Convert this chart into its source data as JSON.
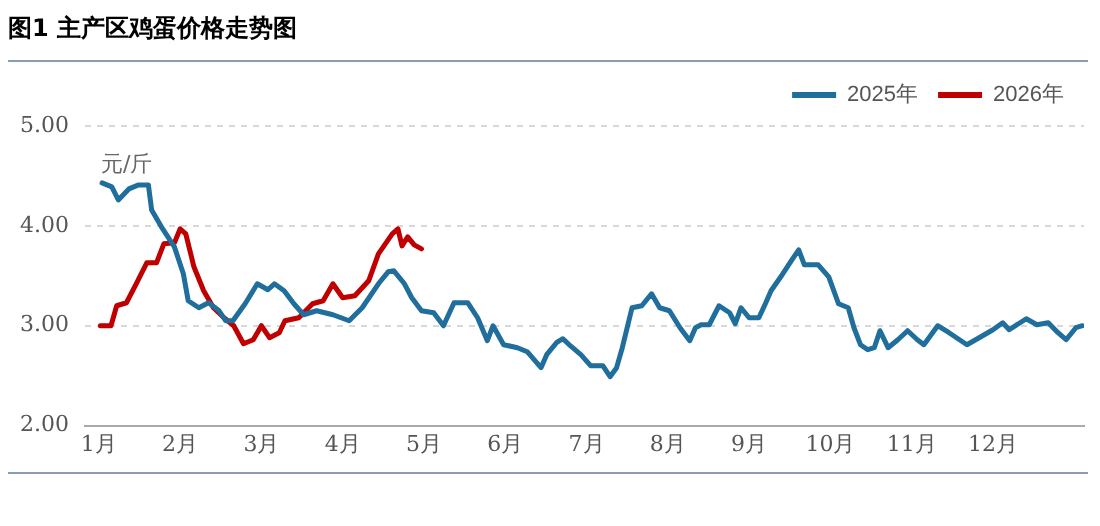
{
  "chart_data": {
    "type": "line",
    "title": "图1 主产区鸡蛋价格走势图",
    "ylabel": "元/斤",
    "xlim": [
      0.83,
      13.12
    ],
    "xticks": [
      {
        "value": 1,
        "label": "1月"
      },
      {
        "value": 2,
        "label": "2月"
      },
      {
        "value": 3,
        "label": "3月"
      },
      {
        "value": 4,
        "label": "4月"
      },
      {
        "value": 5,
        "label": "5月"
      },
      {
        "value": 6,
        "label": "6月"
      },
      {
        "value": 7,
        "label": "7月"
      },
      {
        "value": 8,
        "label": "8月"
      },
      {
        "value": 9,
        "label": "9月"
      },
      {
        "value": 10,
        "label": "10月"
      },
      {
        "value": 11,
        "label": "11月"
      },
      {
        "value": 12,
        "label": "12月"
      }
    ],
    "ylim": [
      2,
      5
    ],
    "yticks": [
      {
        "value": 2,
        "label": "2.00"
      },
      {
        "value": 3,
        "label": "3.00"
      },
      {
        "value": 4,
        "label": "4.00"
      },
      {
        "value": 5,
        "label": "5.00"
      }
    ],
    "grid": "y",
    "legend": "top right",
    "marker": "none",
    "line_style": "solid",
    "series": [
      {
        "name": "2025年",
        "color": "#1f6e9c",
        "x": [
          1.04,
          1.16,
          1.24,
          1.37,
          1.49,
          1.61,
          1.65,
          1.77,
          1.93,
          2.04,
          2.1,
          2.23,
          2.35,
          2.48,
          2.56,
          2.65,
          2.8,
          2.95,
          3.08,
          3.16,
          3.28,
          3.4,
          3.52,
          3.68,
          3.88,
          4.08,
          4.24,
          4.44,
          4.56,
          4.63,
          4.76,
          4.85,
          4.97,
          5.12,
          5.24,
          5.37,
          5.54,
          5.66,
          5.78,
          5.85,
          5.98,
          6.15,
          6.27,
          6.44,
          6.51,
          6.63,
          6.71,
          6.8,
          6.93,
          7.05,
          7.2,
          7.29,
          7.37,
          7.44,
          7.56,
          7.68,
          7.8,
          7.9,
          8.02,
          8.15,
          8.27,
          8.34,
          8.41,
          8.51,
          8.63,
          8.76,
          8.83,
          8.9,
          9.0,
          9.12,
          9.2,
          9.27,
          9.39,
          9.51,
          9.61,
          9.68,
          9.85,
          9.98,
          10.1,
          10.22,
          10.29,
          10.37,
          10.46,
          10.54,
          10.61,
          10.71,
          10.83,
          10.95,
          11.07,
          11.15,
          11.32,
          11.46,
          11.68,
          11.83,
          12.0,
          12.12,
          12.2,
          12.41,
          12.54,
          12.68,
          12.8,
          12.9,
          13.02,
          13.1
        ],
        "values": [
          4.43,
          4.39,
          4.26,
          4.37,
          4.41,
          4.41,
          4.16,
          3.99,
          3.79,
          3.52,
          3.25,
          3.18,
          3.23,
          3.15,
          3.05,
          3.05,
          3.22,
          3.42,
          3.36,
          3.42,
          3.35,
          3.22,
          3.11,
          3.15,
          3.11,
          3.05,
          3.18,
          3.42,
          3.54,
          3.55,
          3.42,
          3.28,
          3.15,
          3.13,
          3.0,
          3.23,
          3.23,
          3.08,
          2.85,
          3.0,
          2.81,
          2.78,
          2.74,
          2.58,
          2.71,
          2.83,
          2.87,
          2.8,
          2.71,
          2.6,
          2.6,
          2.49,
          2.58,
          2.78,
          3.18,
          3.2,
          3.32,
          3.18,
          3.15,
          2.98,
          2.85,
          2.98,
          3.01,
          3.01,
          3.2,
          3.13,
          3.02,
          3.18,
          3.08,
          3.08,
          3.22,
          3.35,
          3.49,
          3.64,
          3.76,
          3.61,
          3.61,
          3.49,
          3.22,
          3.18,
          2.98,
          2.81,
          2.76,
          2.78,
          2.95,
          2.78,
          2.86,
          2.95,
          2.86,
          2.81,
          3.0,
          2.93,
          2.81,
          2.88,
          2.96,
          3.03,
          2.96,
          3.07,
          3.01,
          3.03,
          2.93,
          2.86,
          2.98,
          3.0
        ]
      },
      {
        "name": "2026年",
        "color": "#c00000",
        "x": [
          1.02,
          1.15,
          1.22,
          1.34,
          1.46,
          1.59,
          1.71,
          1.8,
          1.93,
          2.0,
          2.07,
          2.17,
          2.29,
          2.41,
          2.54,
          2.66,
          2.78,
          2.9,
          3.0,
          3.1,
          3.22,
          3.29,
          3.46,
          3.63,
          3.76,
          3.88,
          4.0,
          4.15,
          4.32,
          4.44,
          4.61,
          4.68,
          4.73,
          4.8,
          4.88,
          4.97
        ],
        "values": [
          3.0,
          3.0,
          3.2,
          3.23,
          3.42,
          3.63,
          3.63,
          3.82,
          3.83,
          3.97,
          3.92,
          3.59,
          3.35,
          3.18,
          3.08,
          3.0,
          2.82,
          2.86,
          3.0,
          2.88,
          2.93,
          3.05,
          3.08,
          3.22,
          3.25,
          3.42,
          3.28,
          3.3,
          3.45,
          3.72,
          3.92,
          3.97,
          3.8,
          3.89,
          3.81,
          3.77
        ]
      }
    ]
  }
}
